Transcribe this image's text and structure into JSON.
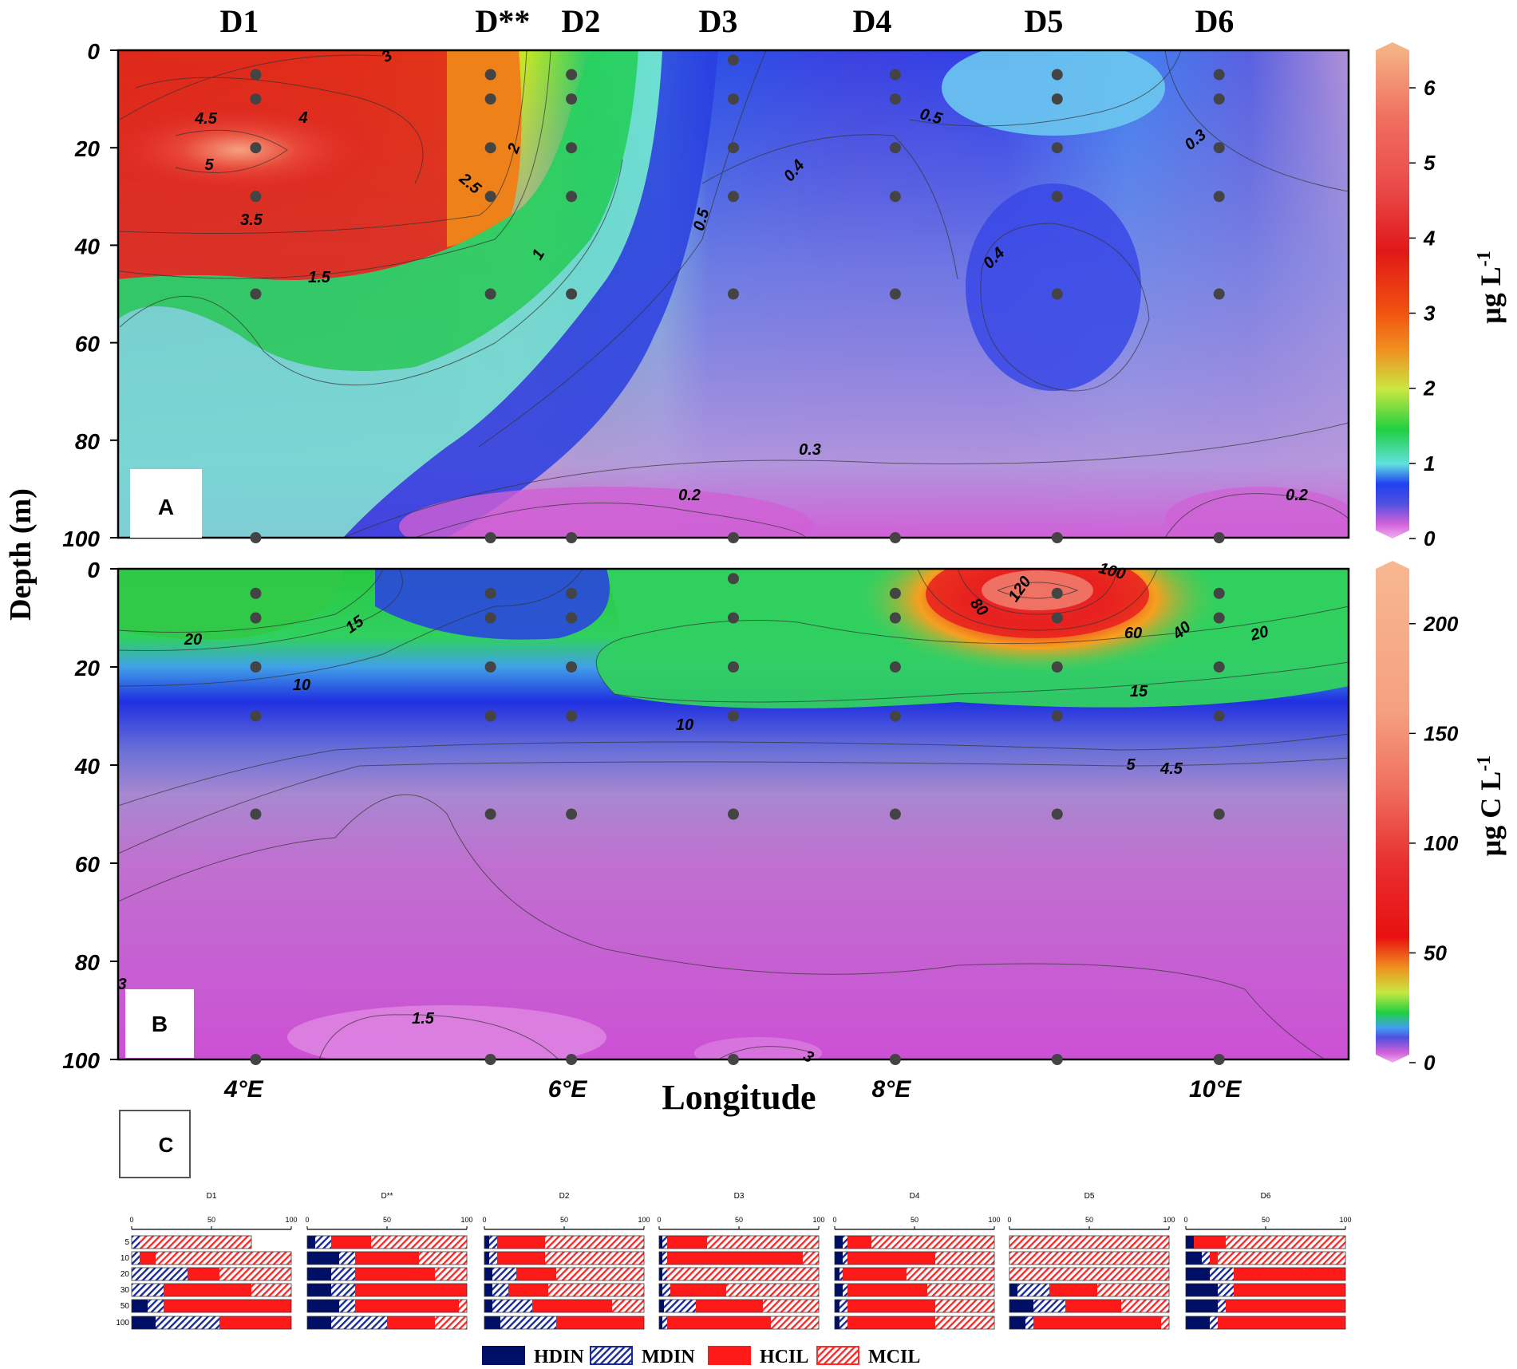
{
  "stations": [
    "D1",
    "D**",
    "D2",
    "D3",
    "D4",
    "D5",
    "D6"
  ],
  "ylabel": "Depth (m)",
  "xlabel": "Longitude",
  "x_ticks": [
    "4°E",
    "6°E",
    "8°E",
    "10°E"
  ],
  "panel_a": {
    "letter": "A",
    "unit_main": "μg L",
    "unit_sup": "-1",
    "depth_ticks": [
      "0",
      "20",
      "40",
      "60",
      "80",
      "100"
    ],
    "colorbar_ticks": [
      "0",
      "1",
      "2",
      "3",
      "4",
      "5",
      "6"
    ],
    "contour_labels": [
      "3",
      "4",
      "4.5",
      "5",
      "3.5",
      "1.5",
      "2",
      "2.5",
      "1",
      "0.5",
      "0.4",
      "0.5",
      "0.4",
      "0.3",
      "0.3",
      "0.2",
      "0.2"
    ]
  },
  "panel_b": {
    "letter": "B",
    "unit_main": "μg C L",
    "unit_sup": "-1",
    "depth_ticks": [
      "0",
      "20",
      "40",
      "60",
      "80",
      "100"
    ],
    "colorbar_ticks": [
      "0",
      "50",
      "100",
      "150",
      "200"
    ],
    "contour_labels": [
      "20",
      "15",
      "10",
      "10",
      "80",
      "120",
      "100",
      "60",
      "40",
      "20",
      "15",
      "5",
      "4.5",
      "1.5",
      "3",
      "3"
    ]
  },
  "panel_c": {
    "letter": "C",
    "scale_ticks": [
      "0",
      "50",
      "100"
    ],
    "depth_labels": [
      "5",
      "10",
      "20",
      "30",
      "50",
      "100"
    ],
    "legend": [
      "HDIN",
      "MDIN",
      "HCIL",
      "MCIL"
    ]
  },
  "colors": {
    "HDIN": "#000f66",
    "HCIL": "#ff1a1a",
    "MDIN_stripe": "#1a2a9a",
    "MCIL_stripe": "#ff2a2a",
    "station_dot": "#444444"
  },
  "chart_data": [
    {
      "type": "heatmap",
      "panel": "A",
      "title": "",
      "xlabel": "Longitude",
      "ylabel": "Depth (m)",
      "colorbar_label": "μg L-1",
      "colorbar_range": [
        0,
        6.5
      ],
      "ylim": [
        100,
        0
      ],
      "x_range_degE": [
        3.2,
        10.8
      ],
      "station_lon": [
        4.05,
        5.5,
        6.0,
        7.0,
        8.0,
        9.0,
        10.0
      ],
      "sample_depths": [
        5,
        10,
        20,
        30,
        50,
        100
      ],
      "notes": "Contour section; values read from contour labels"
    },
    {
      "type": "heatmap",
      "panel": "B",
      "title": "",
      "xlabel": "Longitude",
      "ylabel": "Depth (m)",
      "colorbar_label": "μg C L-1",
      "colorbar_range": [
        0,
        225
      ],
      "ylim": [
        100,
        0
      ],
      "x_range_degE": [
        3.2,
        10.8
      ],
      "station_lon": [
        4.05,
        5.5,
        6.0,
        7.0,
        8.0,
        9.0,
        10.0
      ],
      "sample_depths": [
        5,
        10,
        20,
        30,
        50,
        100
      ]
    },
    {
      "type": "bar",
      "panel": "C",
      "orientation": "horizontal-stacked",
      "xlim": [
        0,
        100
      ],
      "categories": [
        "5",
        "10",
        "20",
        "30",
        "50",
        "100"
      ],
      "series_order": [
        "HDIN",
        "MDIN",
        "HCIL",
        "MCIL"
      ],
      "stations": [
        {
          "name": "D1",
          "data": [
            [
              0,
              5,
              0,
              70
            ],
            [
              0,
              5,
              10,
              85
            ],
            [
              0,
              35,
              20,
              45
            ],
            [
              0,
              20,
              55,
              25
            ],
            [
              10,
              10,
              80,
              0
            ],
            [
              15,
              40,
              45,
              0
            ]
          ]
        },
        {
          "name": "D**",
          "data": [
            [
              5,
              10,
              25,
              60
            ],
            [
              20,
              10,
              40,
              30
            ],
            [
              15,
              15,
              50,
              20
            ],
            [
              15,
              15,
              70,
              0
            ],
            [
              20,
              10,
              65,
              5
            ],
            [
              15,
              35,
              30,
              20
            ]
          ]
        },
        {
          "name": "D2",
          "data": [
            [
              3,
              5,
              30,
              62
            ],
            [
              3,
              5,
              30,
              62
            ],
            [
              5,
              15,
              25,
              55
            ],
            [
              5,
              10,
              25,
              60
            ],
            [
              5,
              25,
              50,
              20
            ],
            [
              10,
              35,
              55,
              0
            ]
          ]
        },
        {
          "name": "D3",
          "data": [
            [
              2,
              3,
              25,
              70
            ],
            [
              2,
              3,
              85,
              10
            ],
            [
              2,
              3,
              0,
              95
            ],
            [
              2,
              5,
              35,
              58
            ],
            [
              3,
              20,
              42,
              35
            ],
            [
              2,
              3,
              65,
              30
            ]
          ]
        },
        {
          "name": "D4",
          "data": [
            [
              5,
              3,
              15,
              77
            ],
            [
              5,
              3,
              55,
              37
            ],
            [
              3,
              2,
              40,
              55
            ],
            [
              5,
              3,
              50,
              42
            ],
            [
              3,
              5,
              55,
              37
            ],
            [
              3,
              5,
              55,
              37
            ]
          ]
        },
        {
          "name": "D5",
          "data": [
            [
              0,
              0,
              0,
              100
            ],
            [
              0,
              0,
              0,
              100
            ],
            [
              0,
              0,
              0,
              100
            ],
            [
              5,
              20,
              30,
              45
            ],
            [
              15,
              20,
              35,
              30
            ],
            [
              10,
              5,
              80,
              5
            ]
          ]
        },
        {
          "name": "D6",
          "data": [
            [
              5,
              0,
              20,
              75
            ],
            [
              10,
              5,
              5,
              80
            ],
            [
              15,
              15,
              70,
              0
            ],
            [
              20,
              10,
              70,
              0
            ],
            [
              20,
              5,
              75,
              0
            ],
            [
              15,
              5,
              80,
              0
            ]
          ]
        }
      ]
    }
  ]
}
